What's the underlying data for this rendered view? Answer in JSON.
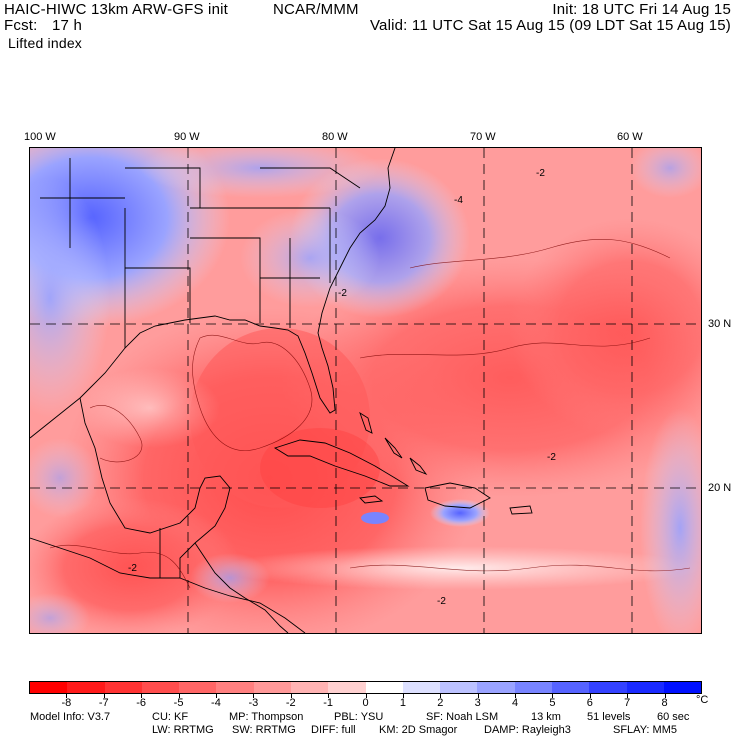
{
  "header": {
    "model": "HAIC-HIWC 13km ARW-GFS init",
    "org": "NCAR/MMM",
    "init": "Init: 18 UTC Fri 14 Aug 15",
    "fcst_label": "Fcst:",
    "fcst_value": "17 h",
    "valid": "Valid: 11 UTC Sat 15 Aug 15 (09 LDT Sat 15 Aug 15)",
    "field": "Lifted index"
  },
  "axes": {
    "lon_labels": [
      "100 W",
      "90 W",
      "80 W",
      "70 W",
      "60 W"
    ],
    "lat_labels": [
      "30 N",
      "20 N"
    ]
  },
  "colorbar": {
    "labels": [
      "-8",
      "-7",
      "-6",
      "-5",
      "-4",
      "-3",
      "-2",
      "-1",
      "0",
      "1",
      "2",
      "3",
      "4",
      "5",
      "6",
      "7",
      "8"
    ],
    "unit": "°C",
    "colors": [
      "#ff0000",
      "#ff1a1a",
      "#ff3333",
      "#ff4d4d",
      "#ff6666",
      "#ff8080",
      "#ff9999",
      "#ffb3b3",
      "#ffd1d1",
      "#ffffff",
      "#dde0ff",
      "#bcc2ff",
      "#9aa3ff",
      "#7884ff",
      "#5663ff",
      "#3442ff",
      "#1a2aff",
      "#0010ff"
    ]
  },
  "contour_labels": [
    "-2",
    "-4",
    "-2",
    "-2",
    "-2",
    "-2"
  ],
  "footer": {
    "line1": [
      "Model Info: V3.7",
      "CU: KF",
      "MP: Thompson",
      "PBL: YSU",
      "SF: Noah LSM",
      "13 km",
      "51 levels",
      "60 sec"
    ],
    "line2": [
      "LW: RRTMG",
      "SW: RRTMG",
      "DIFF: full",
      "KM: 2D Smagor",
      "DAMP: Rayleigh3",
      "SFLAY: MM5"
    ]
  }
}
